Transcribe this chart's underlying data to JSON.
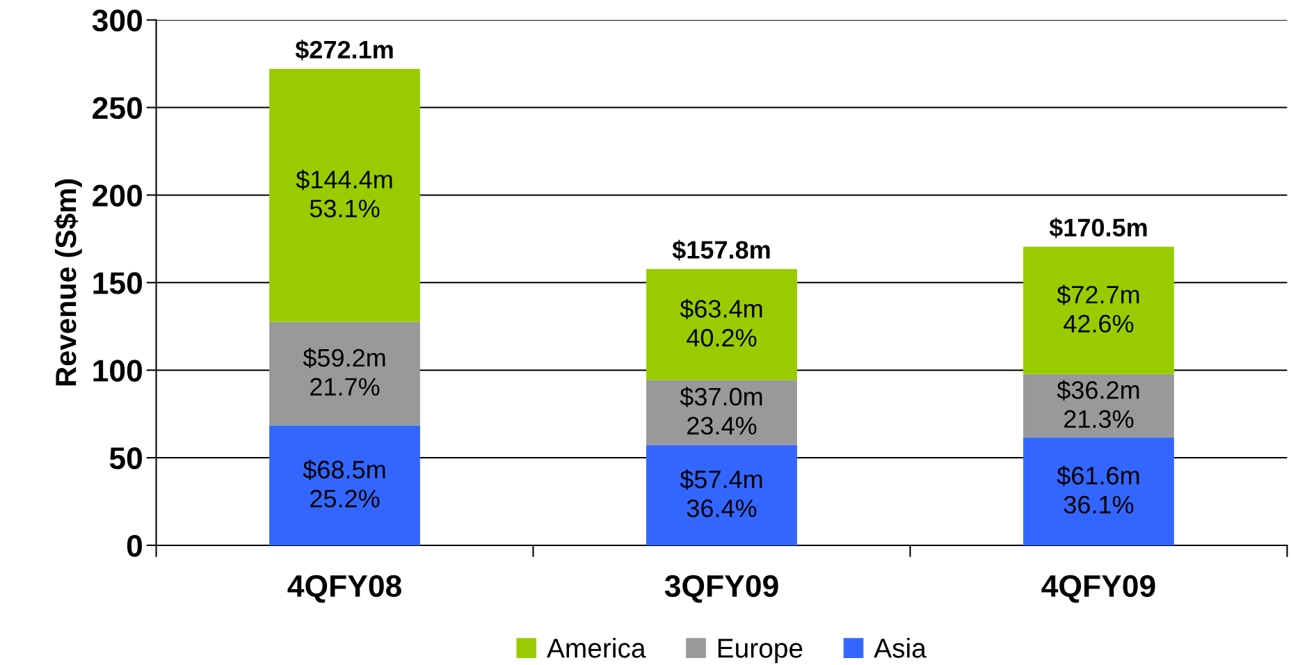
{
  "chart_data": {
    "type": "bar",
    "stacked": true,
    "ylabel": "Revenue (S$m)",
    "categories": [
      "4QFY08",
      "3QFY09",
      "4QFY09"
    ],
    "series": [
      {
        "name": "Asia",
        "color": "#3366ff",
        "values": [
          68.5,
          57.4,
          61.6
        ],
        "value_labels": [
          "$68.5m",
          "$57.4m",
          "$61.6m"
        ]
      },
      {
        "name": "Europe",
        "color": "#999999",
        "values": [
          59.2,
          37.0,
          36.2
        ],
        "value_labels": [
          "$59.2m",
          "$37.0m",
          "$36.2m"
        ]
      },
      {
        "name": "America",
        "color": "#99cc00",
        "values": [
          144.4,
          63.4,
          72.7
        ],
        "value_labels": [
          "$144.4m",
          "$63.4m",
          "$72.7m"
        ]
      }
    ],
    "annotations": [
      "25.2%",
      "36.4%",
      "36.1%",
      "21.7%",
      "23.4%",
      "21.3%",
      "53.1%",
      "40.2%",
      "42.6%"
    ],
    "totals": [
      "$272.1m",
      "$157.8m",
      "$170.5m"
    ],
    "ylim": [
      0,
      300
    ],
    "yticks": [
      0,
      50,
      100,
      150,
      200,
      250,
      300
    ],
    "grid": "y",
    "legend": "bottom"
  }
}
